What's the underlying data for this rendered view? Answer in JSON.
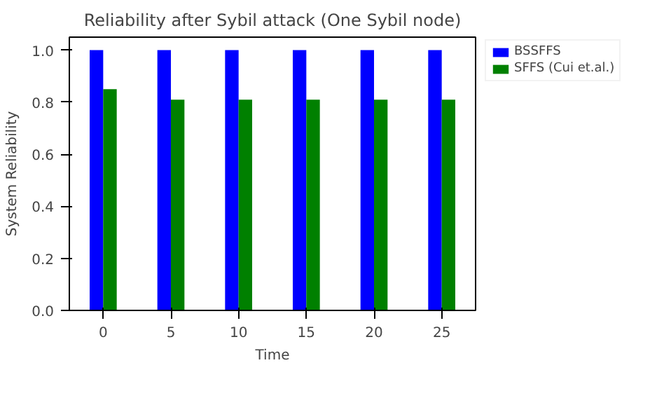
{
  "chart_data": {
    "type": "bar",
    "title": "Reliability after Sybil attack (One Sybil node)",
    "xlabel": "Time",
    "ylabel": "System Reliability",
    "x": [
      0,
      5,
      10,
      15,
      20,
      25
    ],
    "series": [
      {
        "name": "BSSFFS",
        "color": "#0000ff",
        "values": [
          1.0,
          1.0,
          1.0,
          1.0,
          1.0,
          1.0
        ]
      },
      {
        "name": "SFFS (Cui et.al.)",
        "color": "#008000",
        "values": [
          0.85,
          0.81,
          0.81,
          0.81,
          0.81,
          0.81
        ]
      }
    ],
    "xlim": [
      -2.5,
      27.5
    ],
    "xticks": [
      0,
      5,
      10,
      15,
      20,
      25
    ],
    "ylim": [
      0,
      1.05
    ],
    "yticks": [
      {
        "value": 0,
        "label": "0.0"
      },
      0.2,
      0.4,
      0.6,
      0.8,
      {
        "value": 1,
        "label": "1.0"
      }
    ],
    "legend": "right",
    "grid": false
  }
}
